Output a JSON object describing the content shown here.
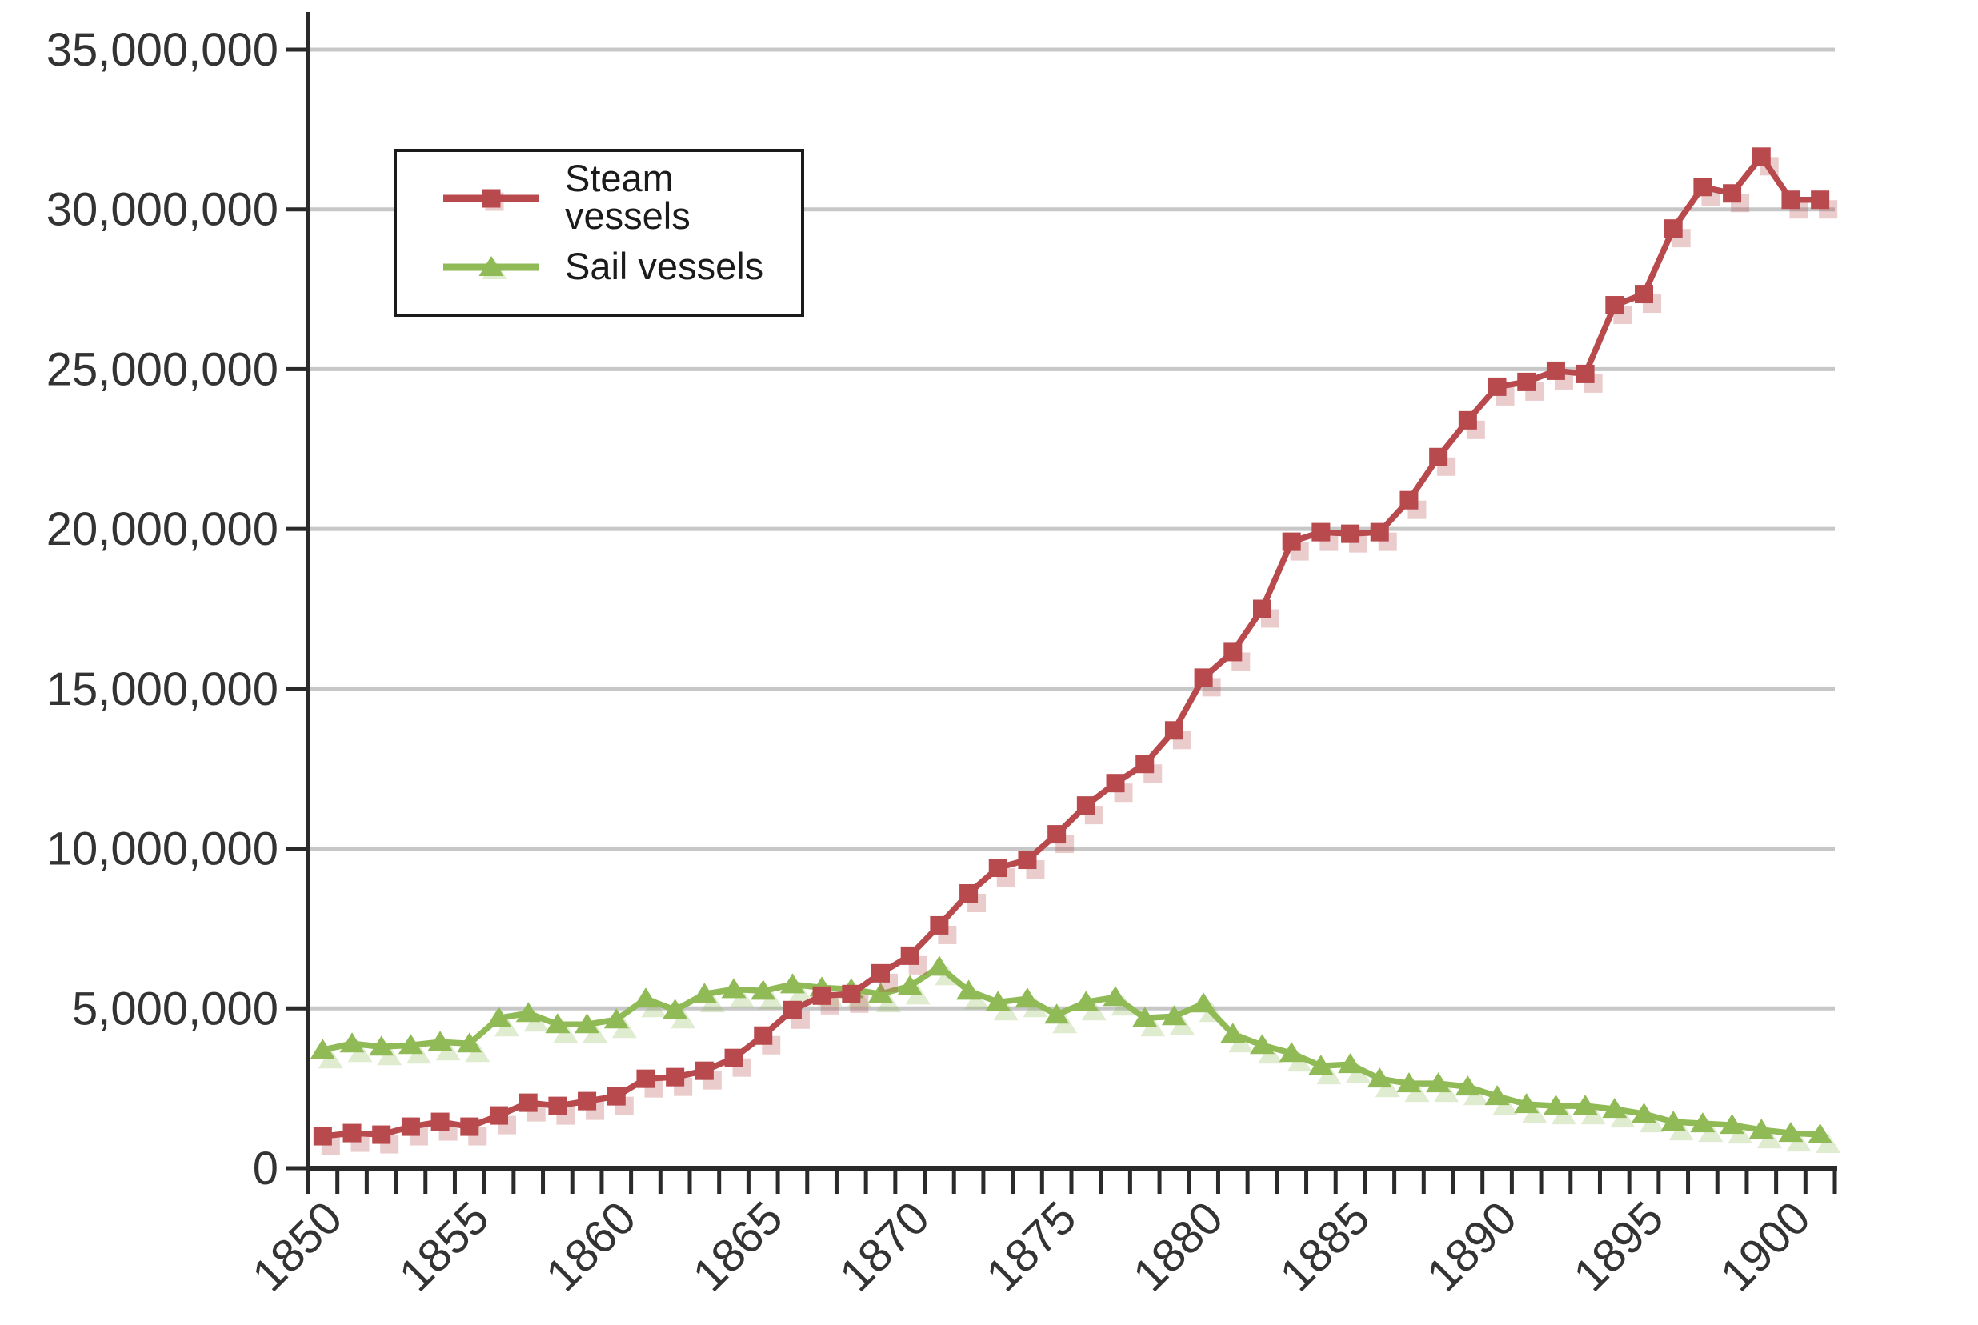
{
  "chart_data": {
    "type": "line",
    "title": "",
    "xlabel": "",
    "ylabel": "",
    "x": [
      1850,
      1851,
      1852,
      1853,
      1854,
      1855,
      1856,
      1857,
      1858,
      1859,
      1860,
      1861,
      1862,
      1863,
      1864,
      1865,
      1866,
      1867,
      1868,
      1869,
      1870,
      1871,
      1872,
      1873,
      1874,
      1875,
      1876,
      1877,
      1878,
      1879,
      1880,
      1881,
      1882,
      1883,
      1884,
      1885,
      1886,
      1887,
      1888,
      1889,
      1890,
      1891,
      1892,
      1893,
      1894,
      1895,
      1896,
      1897,
      1898,
      1899,
      1900,
      1901
    ],
    "series": [
      {
        "name": "Steam vessels",
        "color": "#b8494d",
        "shadow_color": "rgba(184,73,77,0.28)",
        "marker": "square",
        "values": [
          1000000,
          1100000,
          1050000,
          1300000,
          1450000,
          1300000,
          1650000,
          2050000,
          1950000,
          2100000,
          2250000,
          2800000,
          2850000,
          3050000,
          3450000,
          4150000,
          4950000,
          5400000,
          5450000,
          6100000,
          6650000,
          7600000,
          8600000,
          9400000,
          9650000,
          10450000,
          11350000,
          12050000,
          12650000,
          13700000,
          15350000,
          16150000,
          17500000,
          19600000,
          19900000,
          19850000,
          19900000,
          20900000,
          22250000,
          23400000,
          24450000,
          24600000,
          24950000,
          24850000,
          27000000,
          27350000,
          29400000,
          30700000,
          30500000,
          31650000,
          30300000,
          30300000
        ]
      },
      {
        "name": "Sail vessels",
        "color": "#8fba55",
        "shadow_color": "rgba(143,186,85,0.28)",
        "marker": "triangle",
        "values": [
          3700000,
          3900000,
          3800000,
          3850000,
          3950000,
          3900000,
          4700000,
          4850000,
          4500000,
          4500000,
          4650000,
          5300000,
          4950000,
          5450000,
          5600000,
          5550000,
          5750000,
          5650000,
          5600000,
          5450000,
          5700000,
          6300000,
          5550000,
          5200000,
          5300000,
          4800000,
          5200000,
          5350000,
          4700000,
          4750000,
          5150000,
          4200000,
          3850000,
          3600000,
          3200000,
          3250000,
          2800000,
          2650000,
          2650000,
          2550000,
          2250000,
          2000000,
          1950000,
          1950000,
          1850000,
          1700000,
          1450000,
          1400000,
          1350000,
          1200000,
          1100000,
          1050000
        ]
      }
    ],
    "ylim": [
      0,
      35000000
    ],
    "y_tick_interval": 5000000,
    "y_tick_labels": [
      "0",
      "5,000,000",
      "10,000,000",
      "15,000,000",
      "20,000,000",
      "25,000,000",
      "30,000,000",
      "35,000,000"
    ],
    "x_tick_years": [
      1850,
      1855,
      1860,
      1865,
      1870,
      1875,
      1880,
      1885,
      1890,
      1895,
      1900
    ],
    "grid": "horizontal",
    "grid_color": "#c7c7c7",
    "axis_color": "#2a2a2a",
    "tick_label_color": "#333333",
    "legend_position": "upper-left",
    "background_color": "#ffffff"
  }
}
